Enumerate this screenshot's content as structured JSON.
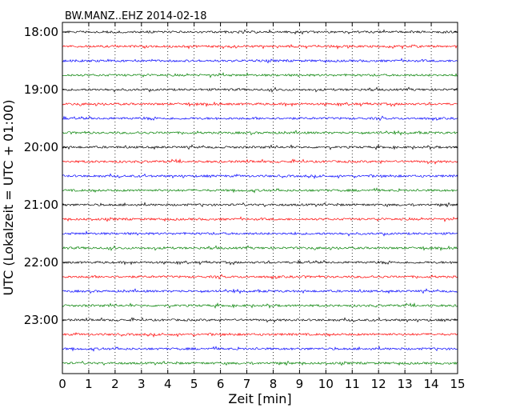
{
  "chart_data": {
    "type": "line",
    "title": "BW.MANZ..EHZ 2014-02-18",
    "xlabel": "Zeit  [min]",
    "ylabel": "UTC (Lokalzeit = UTC + 01:00)",
    "xlim": [
      0,
      15
    ],
    "x_ticks": [
      "0",
      "1",
      "2",
      "3",
      "4",
      "5",
      "6",
      "7",
      "8",
      "9",
      "10",
      "11",
      "12",
      "13",
      "14",
      "15"
    ],
    "y_tick_labels": [
      "18:00",
      "19:00",
      "20:00",
      "21:00",
      "22:00",
      "23:00"
    ],
    "grid": "vertical dotted",
    "trace_colors": [
      "#000000",
      "#ff0000",
      "#0000ff",
      "#008000"
    ],
    "traces": [
      {
        "start": "18:00",
        "color": "#000000"
      },
      {
        "start": "18:15",
        "color": "#ff0000"
      },
      {
        "start": "18:30",
        "color": "#0000ff"
      },
      {
        "start": "18:45",
        "color": "#008000"
      },
      {
        "start": "19:00",
        "color": "#000000"
      },
      {
        "start": "19:15",
        "color": "#ff0000"
      },
      {
        "start": "19:30",
        "color": "#0000ff"
      },
      {
        "start": "19:45",
        "color": "#008000"
      },
      {
        "start": "20:00",
        "color": "#000000"
      },
      {
        "start": "20:15",
        "color": "#ff0000"
      },
      {
        "start": "20:30",
        "color": "#0000ff"
      },
      {
        "start": "20:45",
        "color": "#008000"
      },
      {
        "start": "21:00",
        "color": "#000000"
      },
      {
        "start": "21:15",
        "color": "#ff0000"
      },
      {
        "start": "21:30",
        "color": "#0000ff"
      },
      {
        "start": "21:45",
        "color": "#008000"
      },
      {
        "start": "22:00",
        "color": "#000000"
      },
      {
        "start": "22:15",
        "color": "#ff0000"
      },
      {
        "start": "22:30",
        "color": "#0000ff"
      },
      {
        "start": "22:45",
        "color": "#008000"
      },
      {
        "start": "23:00",
        "color": "#000000"
      },
      {
        "start": "23:15",
        "color": "#ff0000"
      },
      {
        "start": "23:30",
        "color": "#0000ff"
      },
      {
        "start": "23:45",
        "color": "#008000"
      }
    ]
  }
}
